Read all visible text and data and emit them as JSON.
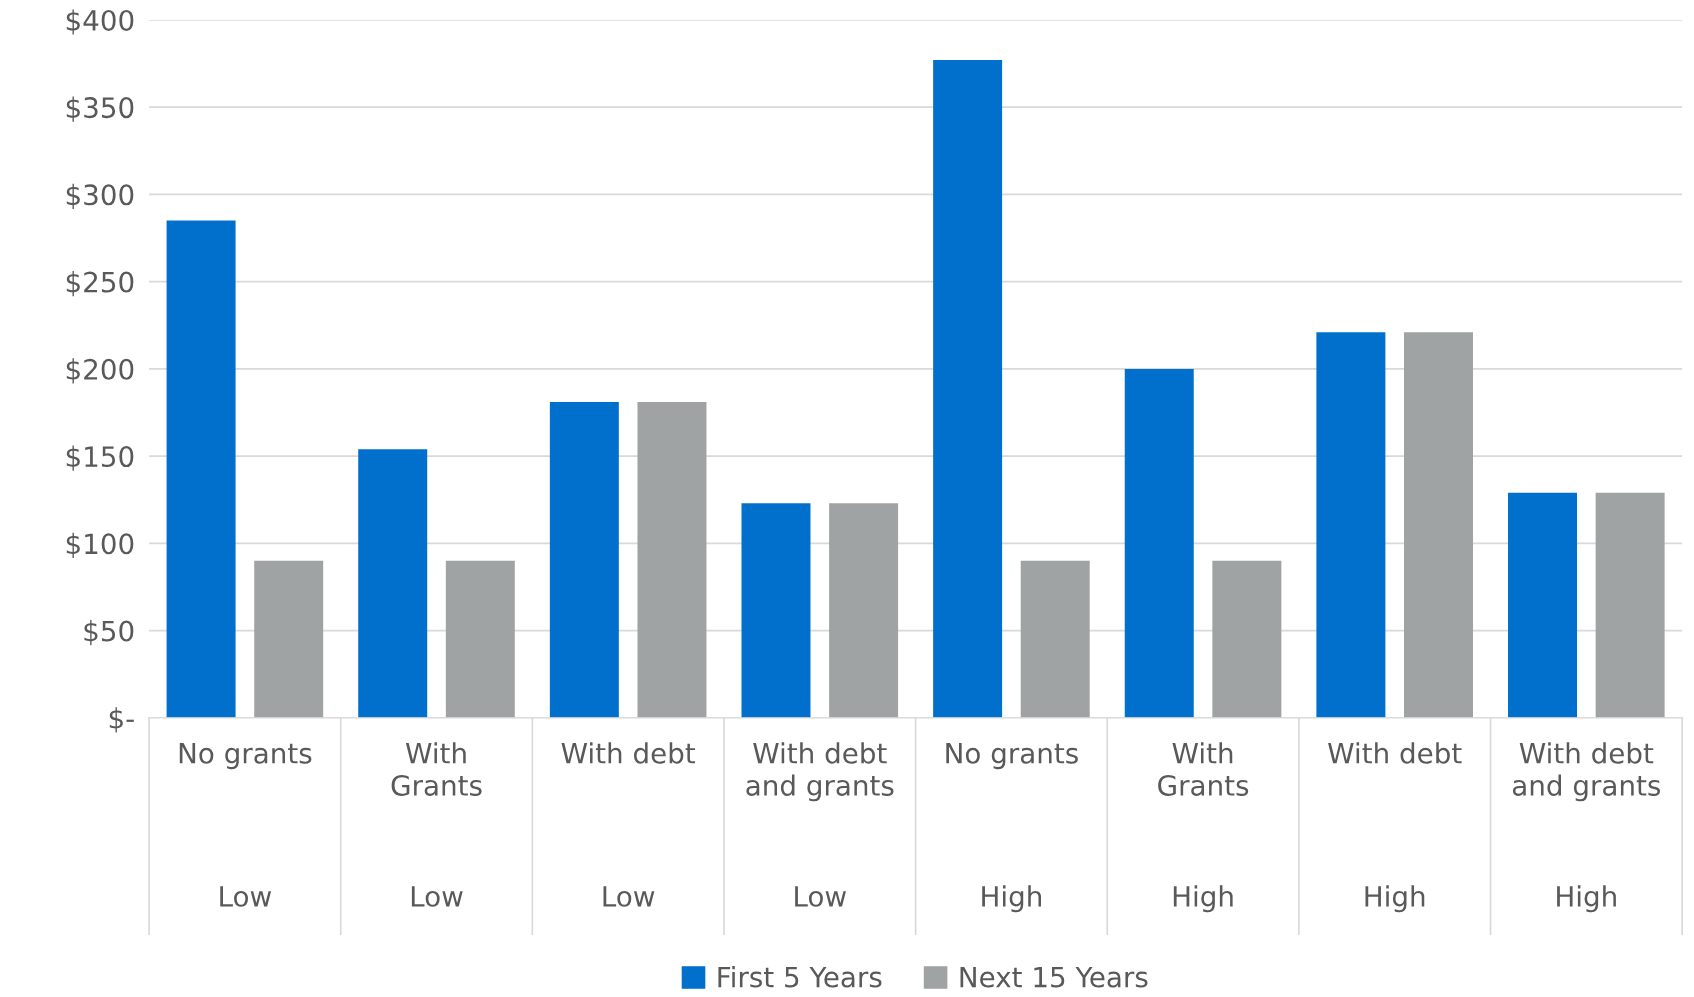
{
  "chart_data": {
    "type": "bar",
    "categories": [
      "No grants\nLow",
      "With\nGrants\nLow",
      "With debt\nLow",
      "With debt\nand grants\nLow",
      "No grants\nHigh",
      "With\nGrants\nHigh",
      "With debt\nHigh",
      "With debt\nand grants\nHigh"
    ],
    "series": [
      {
        "name": "First 5 Years",
        "color": "#0070cc",
        "values": [
          285,
          154,
          181,
          123,
          377,
          200,
          221,
          129
        ]
      },
      {
        "name": "Next 15 Years",
        "color": "#a0a3a4",
        "values": [
          90,
          90,
          181,
          123,
          90,
          90,
          221,
          129
        ]
      }
    ],
    "ylim": [
      0,
      400
    ],
    "yticks": [
      {
        "value": 0,
        "label": "$-"
      },
      {
        "value": 50,
        "label": "$50"
      },
      {
        "value": 100,
        "label": "$100"
      },
      {
        "value": 150,
        "label": "$150"
      },
      {
        "value": 200,
        "label": "$200"
      },
      {
        "value": 250,
        "label": "$250"
      },
      {
        "value": 300,
        "label": "$300"
      },
      {
        "value": 350,
        "label": "$350"
      },
      {
        "value": 400,
        "label": "$400"
      }
    ],
    "grid": "y",
    "legend": "bottom"
  }
}
